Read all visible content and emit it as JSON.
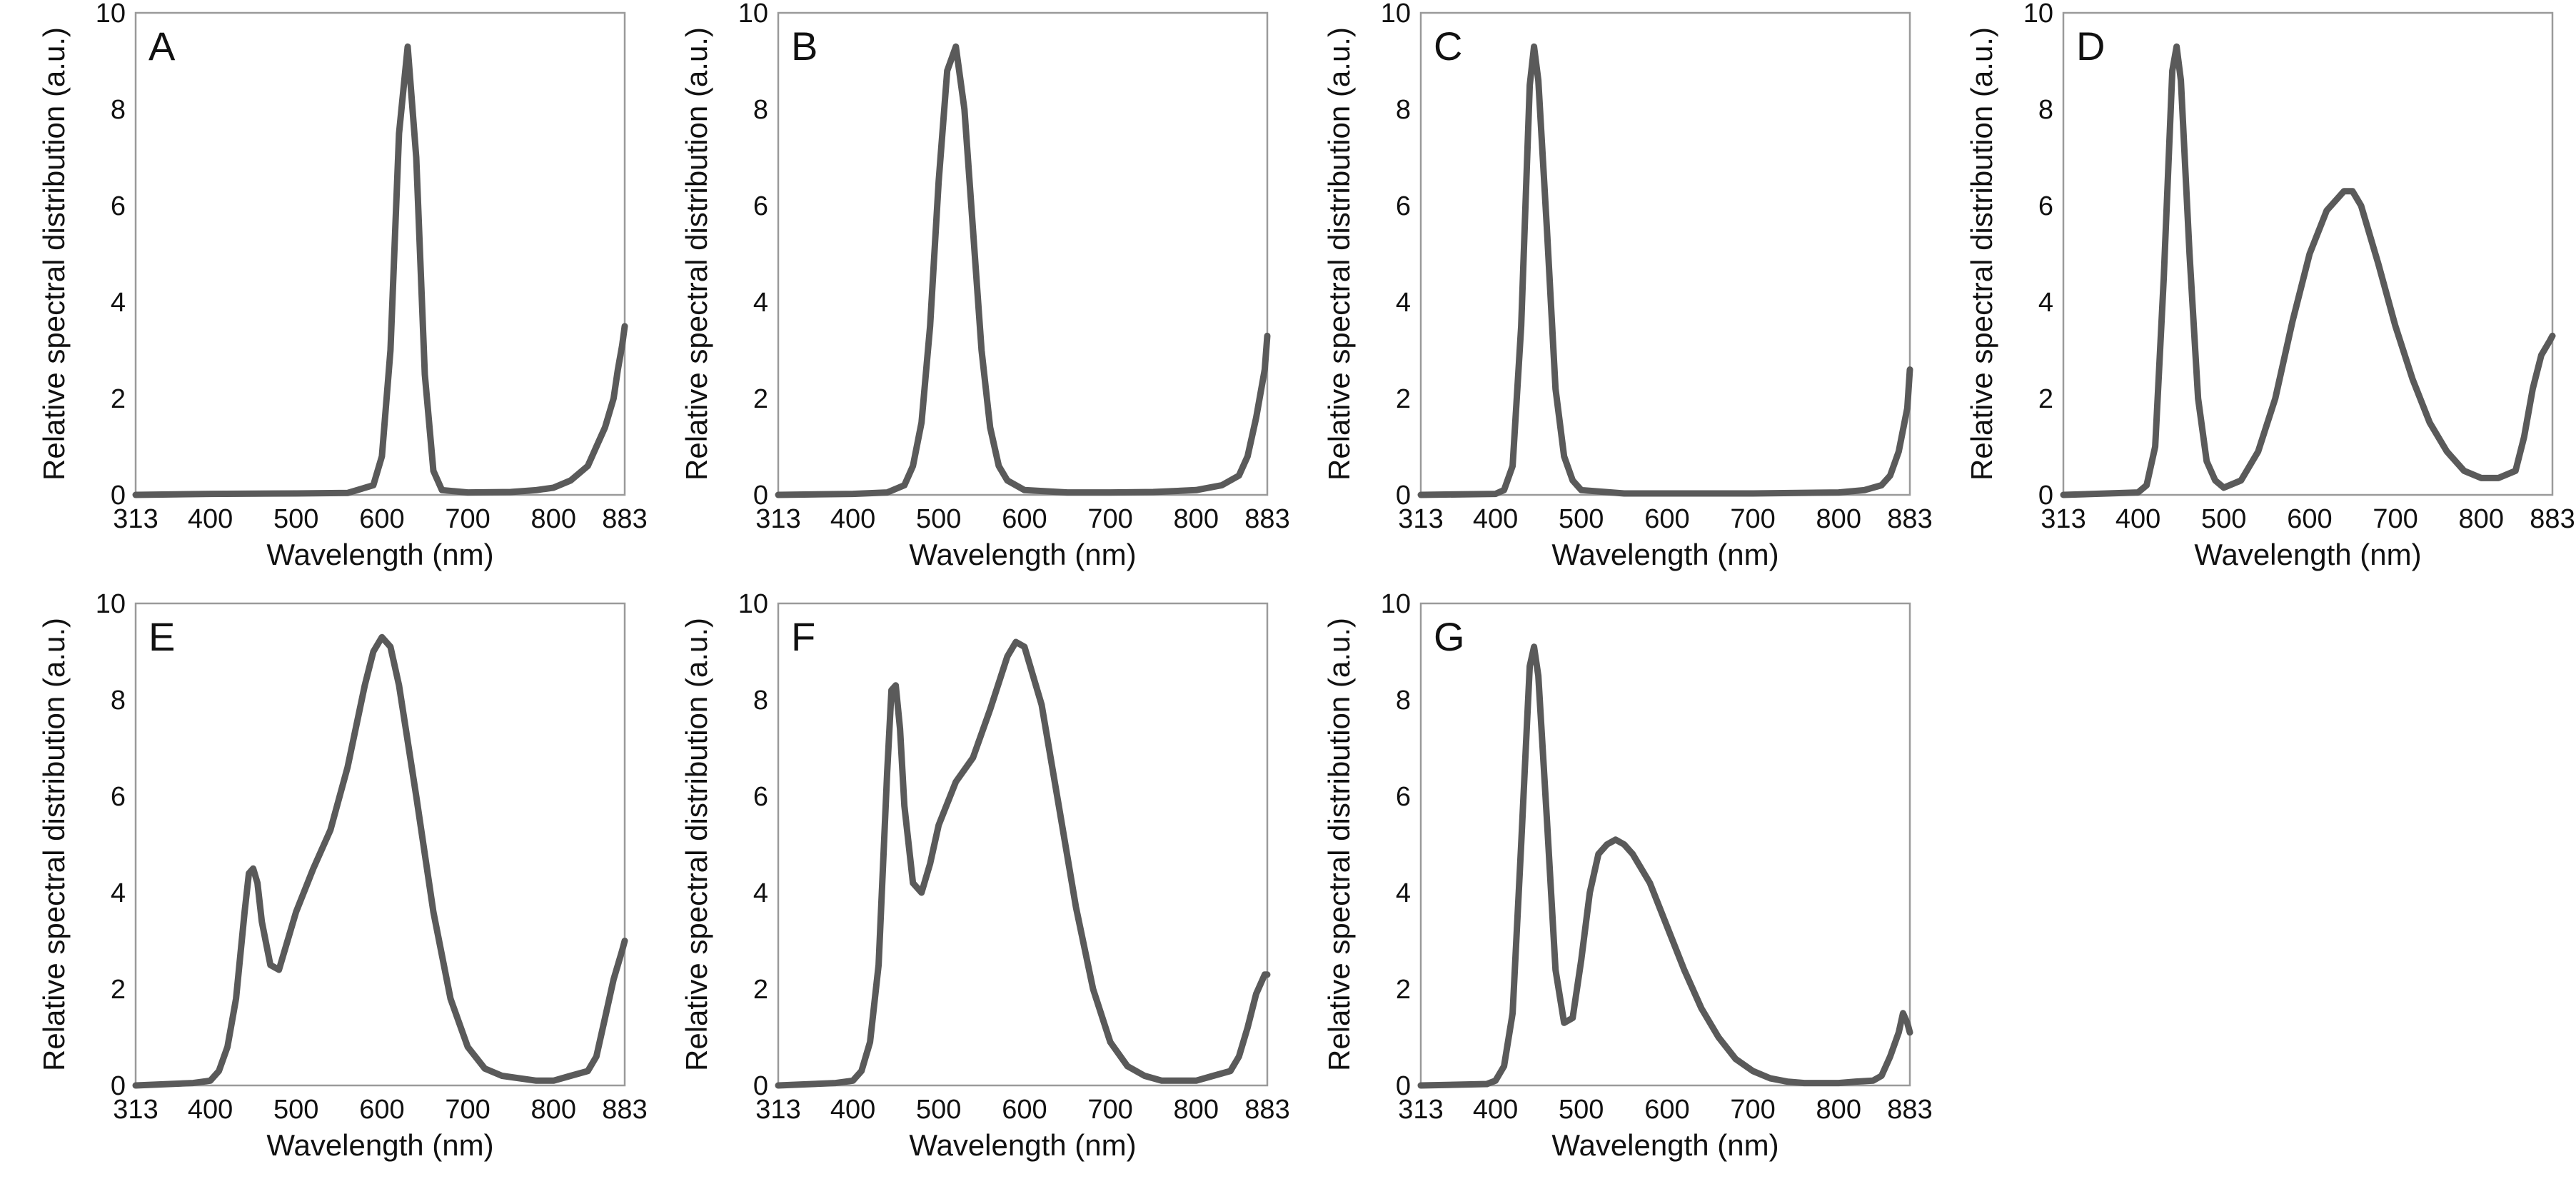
{
  "colors": {
    "line": "#5a5a5a",
    "frame": "#9a9a9a",
    "text": "#111111"
  },
  "chart_data": [
    {
      "panel": "A",
      "type": "line",
      "xlabel": "Wavelength (nm)",
      "ylabel": "Relative spectral distribution (a.u.)",
      "xlim": [
        313,
        883
      ],
      "ylim": [
        0,
        10
      ],
      "xticks": [
        313,
        400,
        500,
        600,
        700,
        800,
        883
      ],
      "xtick_labels": [
        "313",
        "400",
        "500",
        "600",
        "700",
        "800",
        "883"
      ],
      "yticks": [
        0,
        2,
        4,
        6,
        8,
        10
      ],
      "ytick_labels": [
        "0",
        "2",
        "4",
        "6",
        "8",
        "10"
      ],
      "series": [
        {
          "name": "A",
          "x": [
            313,
            400,
            500,
            560,
            590,
            600,
            610,
            620,
            630,
            640,
            650,
            660,
            670,
            700,
            750,
            780,
            800,
            820,
            840,
            850,
            860,
            870,
            875,
            880,
            883
          ],
          "y": [
            0,
            0.02,
            0.03,
            0.04,
            0.2,
            0.8,
            3.0,
            7.5,
            9.3,
            7.0,
            2.5,
            0.5,
            0.1,
            0.05,
            0.06,
            0.1,
            0.15,
            0.3,
            0.6,
            1.0,
            1.4,
            2.0,
            2.6,
            3.1,
            3.5
          ]
        }
      ]
    },
    {
      "panel": "B",
      "type": "line",
      "xlabel": "Wavelength (nm)",
      "ylabel": "Relative spectral distribution (a.u.)",
      "xlim": [
        313,
        883
      ],
      "ylim": [
        0,
        10
      ],
      "xticks": [
        313,
        400,
        500,
        600,
        700,
        800,
        883
      ],
      "xtick_labels": [
        "313",
        "400",
        "500",
        "600",
        "700",
        "800",
        "883"
      ],
      "yticks": [
        0,
        2,
        4,
        6,
        8,
        10
      ],
      "ytick_labels": [
        "0",
        "2",
        "4",
        "6",
        "8",
        "10"
      ],
      "series": [
        {
          "name": "B",
          "x": [
            313,
            400,
            440,
            460,
            470,
            480,
            490,
            500,
            510,
            520,
            530,
            540,
            550,
            560,
            570,
            580,
            600,
            650,
            700,
            750,
            800,
            830,
            850,
            860,
            870,
            880,
            883
          ],
          "y": [
            0,
            0.02,
            0.05,
            0.2,
            0.6,
            1.5,
            3.5,
            6.5,
            8.8,
            9.3,
            8.0,
            5.5,
            3.0,
            1.4,
            0.6,
            0.3,
            0.1,
            0.05,
            0.05,
            0.06,
            0.1,
            0.2,
            0.4,
            0.8,
            1.6,
            2.6,
            3.3
          ]
        }
      ]
    },
    {
      "panel": "C",
      "type": "line",
      "xlabel": "Wavelength (nm)",
      "ylabel": "Relative spectral distribution (a.u.)",
      "xlim": [
        313,
        883
      ],
      "ylim": [
        0,
        10
      ],
      "xticks": [
        313,
        400,
        500,
        600,
        700,
        800,
        883
      ],
      "xtick_labels": [
        "313",
        "400",
        "500",
        "600",
        "700",
        "800",
        "883"
      ],
      "yticks": [
        0,
        2,
        4,
        6,
        8,
        10
      ],
      "ytick_labels": [
        "0",
        "2",
        "4",
        "6",
        "8",
        "10"
      ],
      "series": [
        {
          "name": "C",
          "x": [
            313,
            400,
            410,
            420,
            430,
            440,
            445,
            450,
            460,
            470,
            480,
            490,
            500,
            550,
            600,
            700,
            800,
            830,
            850,
            860,
            870,
            880,
            883
          ],
          "y": [
            0,
            0.02,
            0.1,
            0.6,
            3.5,
            8.5,
            9.3,
            8.6,
            5.5,
            2.2,
            0.8,
            0.3,
            0.1,
            0.03,
            0.03,
            0.03,
            0.05,
            0.1,
            0.2,
            0.4,
            0.9,
            1.8,
            2.6
          ]
        }
      ]
    },
    {
      "panel": "D",
      "type": "line",
      "xlabel": "Wavelength (nm)",
      "ylabel": "Relative spectral distribution (a.u.)",
      "xlim": [
        313,
        883
      ],
      "ylim": [
        0,
        10
      ],
      "xticks": [
        313,
        400,
        500,
        600,
        700,
        800,
        883
      ],
      "xtick_labels": [
        "313",
        "400",
        "500",
        "600",
        "700",
        "800",
        "883"
      ],
      "yticks": [
        0,
        2,
        4,
        6,
        8,
        10
      ],
      "ytick_labels": [
        "0",
        "2",
        "4",
        "6",
        "8",
        "10"
      ],
      "series": [
        {
          "name": "D",
          "x": [
            313,
            400,
            410,
            420,
            430,
            440,
            445,
            450,
            460,
            470,
            480,
            490,
            500,
            520,
            540,
            560,
            580,
            600,
            620,
            640,
            650,
            660,
            680,
            700,
            720,
            740,
            760,
            780,
            800,
            820,
            840,
            850,
            860,
            870,
            880,
            883
          ],
          "y": [
            0,
            0.05,
            0.2,
            1.0,
            4.5,
            8.8,
            9.3,
            8.6,
            5.0,
            2.0,
            0.7,
            0.3,
            0.15,
            0.3,
            0.9,
            2.0,
            3.6,
            5.0,
            5.9,
            6.3,
            6.3,
            6.0,
            4.8,
            3.5,
            2.4,
            1.5,
            0.9,
            0.5,
            0.35,
            0.35,
            0.5,
            1.2,
            2.2,
            2.9,
            3.2,
            3.3
          ]
        }
      ]
    },
    {
      "panel": "E",
      "type": "line",
      "xlabel": "Wavelength (nm)",
      "ylabel": "Relative spectral distribution (a.u.)",
      "xlim": [
        313,
        883
      ],
      "ylim": [
        0,
        10
      ],
      "xticks": [
        313,
        400,
        500,
        600,
        700,
        800,
        883
      ],
      "xtick_labels": [
        "313",
        "400",
        "500",
        "600",
        "700",
        "800",
        "883"
      ],
      "yticks": [
        0,
        2,
        4,
        6,
        8,
        10
      ],
      "ytick_labels": [
        "0",
        "2",
        "4",
        "6",
        "8",
        "10"
      ],
      "series": [
        {
          "name": "E",
          "x": [
            313,
            380,
            400,
            410,
            420,
            430,
            440,
            445,
            450,
            455,
            460,
            470,
            480,
            490,
            500,
            520,
            540,
            560,
            580,
            590,
            600,
            610,
            620,
            640,
            660,
            680,
            700,
            720,
            740,
            760,
            780,
            800,
            820,
            840,
            850,
            860,
            870,
            880,
            883
          ],
          "y": [
            0,
            0.05,
            0.1,
            0.3,
            0.8,
            1.8,
            3.6,
            4.4,
            4.5,
            4.2,
            3.4,
            2.5,
            2.4,
            3.0,
            3.6,
            4.5,
            5.3,
            6.6,
            8.3,
            9.0,
            9.3,
            9.1,
            8.3,
            6.0,
            3.6,
            1.8,
            0.8,
            0.35,
            0.2,
            0.15,
            0.1,
            0.1,
            0.2,
            0.3,
            0.6,
            1.4,
            2.2,
            2.8,
            3.0
          ]
        }
      ]
    },
    {
      "panel": "F",
      "type": "line",
      "xlabel": "Wavelength (nm)",
      "ylabel": "Relative spectral distribution (a.u.)",
      "xlim": [
        313,
        883
      ],
      "ylim": [
        0,
        10
      ],
      "xticks": [
        313,
        400,
        500,
        600,
        700,
        800,
        883
      ],
      "xtick_labels": [
        "313",
        "400",
        "500",
        "600",
        "700",
        "800",
        "883"
      ],
      "yticks": [
        0,
        2,
        4,
        6,
        8,
        10
      ],
      "ytick_labels": [
        "0",
        "2",
        "4",
        "6",
        "8",
        "10"
      ],
      "series": [
        {
          "name": "F",
          "x": [
            313,
            380,
            400,
            410,
            420,
            430,
            440,
            445,
            450,
            455,
            460,
            470,
            480,
            490,
            500,
            520,
            540,
            560,
            580,
            590,
            600,
            620,
            640,
            660,
            680,
            700,
            720,
            740,
            760,
            780,
            800,
            820,
            840,
            850,
            860,
            870,
            880,
            883
          ],
          "y": [
            0,
            0.05,
            0.1,
            0.3,
            0.9,
            2.5,
            6.5,
            8.2,
            8.3,
            7.4,
            5.8,
            4.2,
            4.0,
            4.6,
            5.4,
            6.3,
            6.8,
            7.8,
            8.9,
            9.2,
            9.1,
            7.9,
            5.8,
            3.7,
            2.0,
            0.9,
            0.4,
            0.2,
            0.1,
            0.1,
            0.1,
            0.2,
            0.3,
            0.6,
            1.2,
            1.9,
            2.3,
            2.3
          ]
        }
      ]
    },
    {
      "panel": "G",
      "type": "line",
      "xlabel": "Wavelength (nm)",
      "ylabel": "Relative spectral distribution (a.u.)",
      "xlim": [
        313,
        883
      ],
      "ylim": [
        0,
        10
      ],
      "xticks": [
        313,
        400,
        500,
        600,
        700,
        800,
        883
      ],
      "xtick_labels": [
        "313",
        "400",
        "500",
        "600",
        "700",
        "800",
        "883"
      ],
      "yticks": [
        0,
        2,
        4,
        6,
        8,
        10
      ],
      "ytick_labels": [
        "0",
        "2",
        "4",
        "6",
        "8",
        "10"
      ],
      "series": [
        {
          "name": "G",
          "x": [
            313,
            390,
            400,
            410,
            420,
            430,
            440,
            445,
            450,
            460,
            470,
            480,
            490,
            500,
            510,
            520,
            530,
            540,
            550,
            560,
            580,
            600,
            620,
            640,
            660,
            680,
            700,
            720,
            740,
            760,
            780,
            800,
            820,
            840,
            850,
            860,
            870,
            875,
            880,
            883
          ],
          "y": [
            0,
            0.03,
            0.1,
            0.4,
            1.5,
            5.0,
            8.7,
            9.1,
            8.5,
            5.5,
            2.4,
            1.3,
            1.4,
            2.6,
            4.0,
            4.8,
            5.0,
            5.1,
            5.0,
            4.8,
            4.2,
            3.3,
            2.4,
            1.6,
            1.0,
            0.55,
            0.3,
            0.15,
            0.08,
            0.05,
            0.05,
            0.05,
            0.08,
            0.1,
            0.2,
            0.6,
            1.1,
            1.5,
            1.3,
            1.1
          ]
        }
      ]
    }
  ]
}
